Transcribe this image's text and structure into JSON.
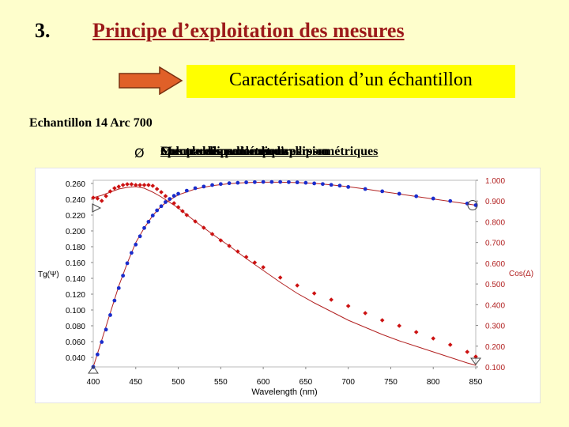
{
  "slide": {
    "number": "3.",
    "title": "Principe d’exploitation des mesures",
    "subtitle": "Caractérisation d’un échantillon",
    "sample_label": "Echantillon 14 Arc 700",
    "bullet_symbol": "Ø",
    "bullet_overlapping_texts": [
      "Spectre ellipsométrique",
      "Comparaison des spectres",
      "Mesure des paramètres ellipsométriques",
      "Calcul du modèle de dispersion"
    ]
  },
  "colors": {
    "background": "#fefecc",
    "title": "#9c1a1a",
    "subtitle_box": "#ffff00",
    "arrow": "#e06028",
    "tg_series": "#cc1111",
    "cos_series": "#1a2ccc",
    "model_line": "#b22222",
    "right_axis_labels": "#b22222"
  },
  "chart_data": {
    "type": "scatter",
    "title": "",
    "xlabel": "Wavelength (nm)",
    "ylabel_left": "Tg(Ψ)",
    "ylabel_right": "Cos(Δ)",
    "xlim": [
      400,
      850
    ],
    "ylim_left": [
      0.028,
      0.264
    ],
    "ylim_right": [
      0.1,
      1.0
    ],
    "x_ticks": [
      "400",
      "450",
      "500",
      "550",
      "600",
      "650",
      "700",
      "750",
      "800",
      "850"
    ],
    "y_left_ticks": [
      "0.260",
      "0.240",
      "0.220",
      "0.200",
      "0.180",
      "0.160",
      "0.140",
      "0.120",
      "0.100",
      "0.080",
      "0.060",
      "0.040"
    ],
    "y_left_values": [
      0.26,
      0.24,
      0.22,
      0.2,
      0.18,
      0.16,
      0.14,
      0.12,
      0.1,
      0.08,
      0.06,
      0.04
    ],
    "y_right_ticks": [
      "1.000",
      "0.900",
      "0.800",
      "0.700",
      "0.600",
      "0.500",
      "0.400",
      "0.300",
      "0.200",
      "0.100"
    ],
    "y_right_values": [
      1.0,
      0.9,
      0.8,
      0.7,
      0.6,
      0.5,
      0.4,
      0.3,
      0.2,
      0.1
    ],
    "grid": false,
    "series": [
      {
        "axis": "left",
        "marker": "diamond",
        "color": "#cc1111",
        "x": [
          400,
          405,
          410,
          415,
          420,
          425,
          430,
          435,
          440,
          445,
          450,
          455,
          460,
          465,
          470,
          475,
          480,
          485,
          490,
          495,
          500,
          505,
          510,
          520,
          530,
          540,
          550,
          560,
          570,
          580,
          590,
          600,
          620,
          640,
          660,
          680,
          700,
          720,
          740,
          760,
          780,
          800,
          820,
          840,
          850
        ],
        "y": [
          0.242,
          0.241,
          0.238,
          0.244,
          0.25,
          0.254,
          0.256,
          0.258,
          0.259,
          0.259,
          0.258,
          0.258,
          0.258,
          0.258,
          0.257,
          0.253,
          0.249,
          0.244,
          0.24,
          0.235,
          0.23,
          0.225,
          0.22,
          0.212,
          0.204,
          0.196,
          0.188,
          0.181,
          0.174,
          0.167,
          0.16,
          0.154,
          0.141,
          0.131,
          0.121,
          0.113,
          0.105,
          0.096,
          0.087,
          0.08,
          0.072,
          0.064,
          0.056,
          0.047,
          0.041
        ]
      },
      {
        "axis": "right",
        "marker": "circle",
        "color": "#1a2ccc",
        "x": [
          400,
          405,
          410,
          415,
          420,
          425,
          430,
          435,
          440,
          445,
          450,
          455,
          460,
          465,
          470,
          475,
          480,
          485,
          490,
          495,
          500,
          510,
          520,
          530,
          540,
          550,
          560,
          570,
          580,
          590,
          600,
          610,
          620,
          630,
          640,
          650,
          660,
          670,
          680,
          690,
          700,
          720,
          740,
          760,
          780,
          800,
          820,
          840,
          850
        ],
        "y": [
          0.1,
          0.16,
          0.22,
          0.28,
          0.35,
          0.42,
          0.48,
          0.54,
          0.6,
          0.65,
          0.69,
          0.73,
          0.77,
          0.8,
          0.83,
          0.855,
          0.875,
          0.895,
          0.91,
          0.925,
          0.935,
          0.95,
          0.962,
          0.97,
          0.977,
          0.982,
          0.986,
          0.988,
          0.99,
          0.991,
          0.992,
          0.992,
          0.992,
          0.991,
          0.99,
          0.988,
          0.985,
          0.982,
          0.978,
          0.974,
          0.968,
          0.958,
          0.947,
          0.935,
          0.923,
          0.912,
          0.9,
          0.888,
          0.88
        ]
      }
    ],
    "model_lines": [
      {
        "axis": "left",
        "x": [
          400,
          410,
          420,
          430,
          440,
          450,
          460,
          470,
          480,
          490,
          500,
          520,
          540,
          560,
          580,
          600,
          620,
          640,
          660,
          680,
          700,
          720,
          740,
          760,
          780,
          800,
          820,
          840,
          850
        ],
        "y": [
          0.242,
          0.245,
          0.249,
          0.253,
          0.255,
          0.256,
          0.254,
          0.249,
          0.243,
          0.236,
          0.229,
          0.212,
          0.196,
          0.181,
          0.165,
          0.15,
          0.135,
          0.121,
          0.109,
          0.098,
          0.087,
          0.078,
          0.069,
          0.061,
          0.054,
          0.047,
          0.04,
          0.033,
          0.03
        ]
      },
      {
        "axis": "right",
        "x": [
          400,
          410,
          420,
          430,
          440,
          450,
          460,
          470,
          480,
          490,
          500,
          520,
          540,
          560,
          580,
          600,
          620,
          640,
          660,
          680,
          700,
          720,
          740,
          760,
          780,
          800,
          820,
          840,
          850
        ],
        "y": [
          0.1,
          0.23,
          0.36,
          0.49,
          0.6,
          0.7,
          0.77,
          0.83,
          0.875,
          0.905,
          0.93,
          0.958,
          0.974,
          0.984,
          0.989,
          0.991,
          0.991,
          0.989,
          0.985,
          0.978,
          0.969,
          0.958,
          0.946,
          0.934,
          0.922,
          0.91,
          0.898,
          0.886,
          0.88
        ]
      }
    ]
  }
}
